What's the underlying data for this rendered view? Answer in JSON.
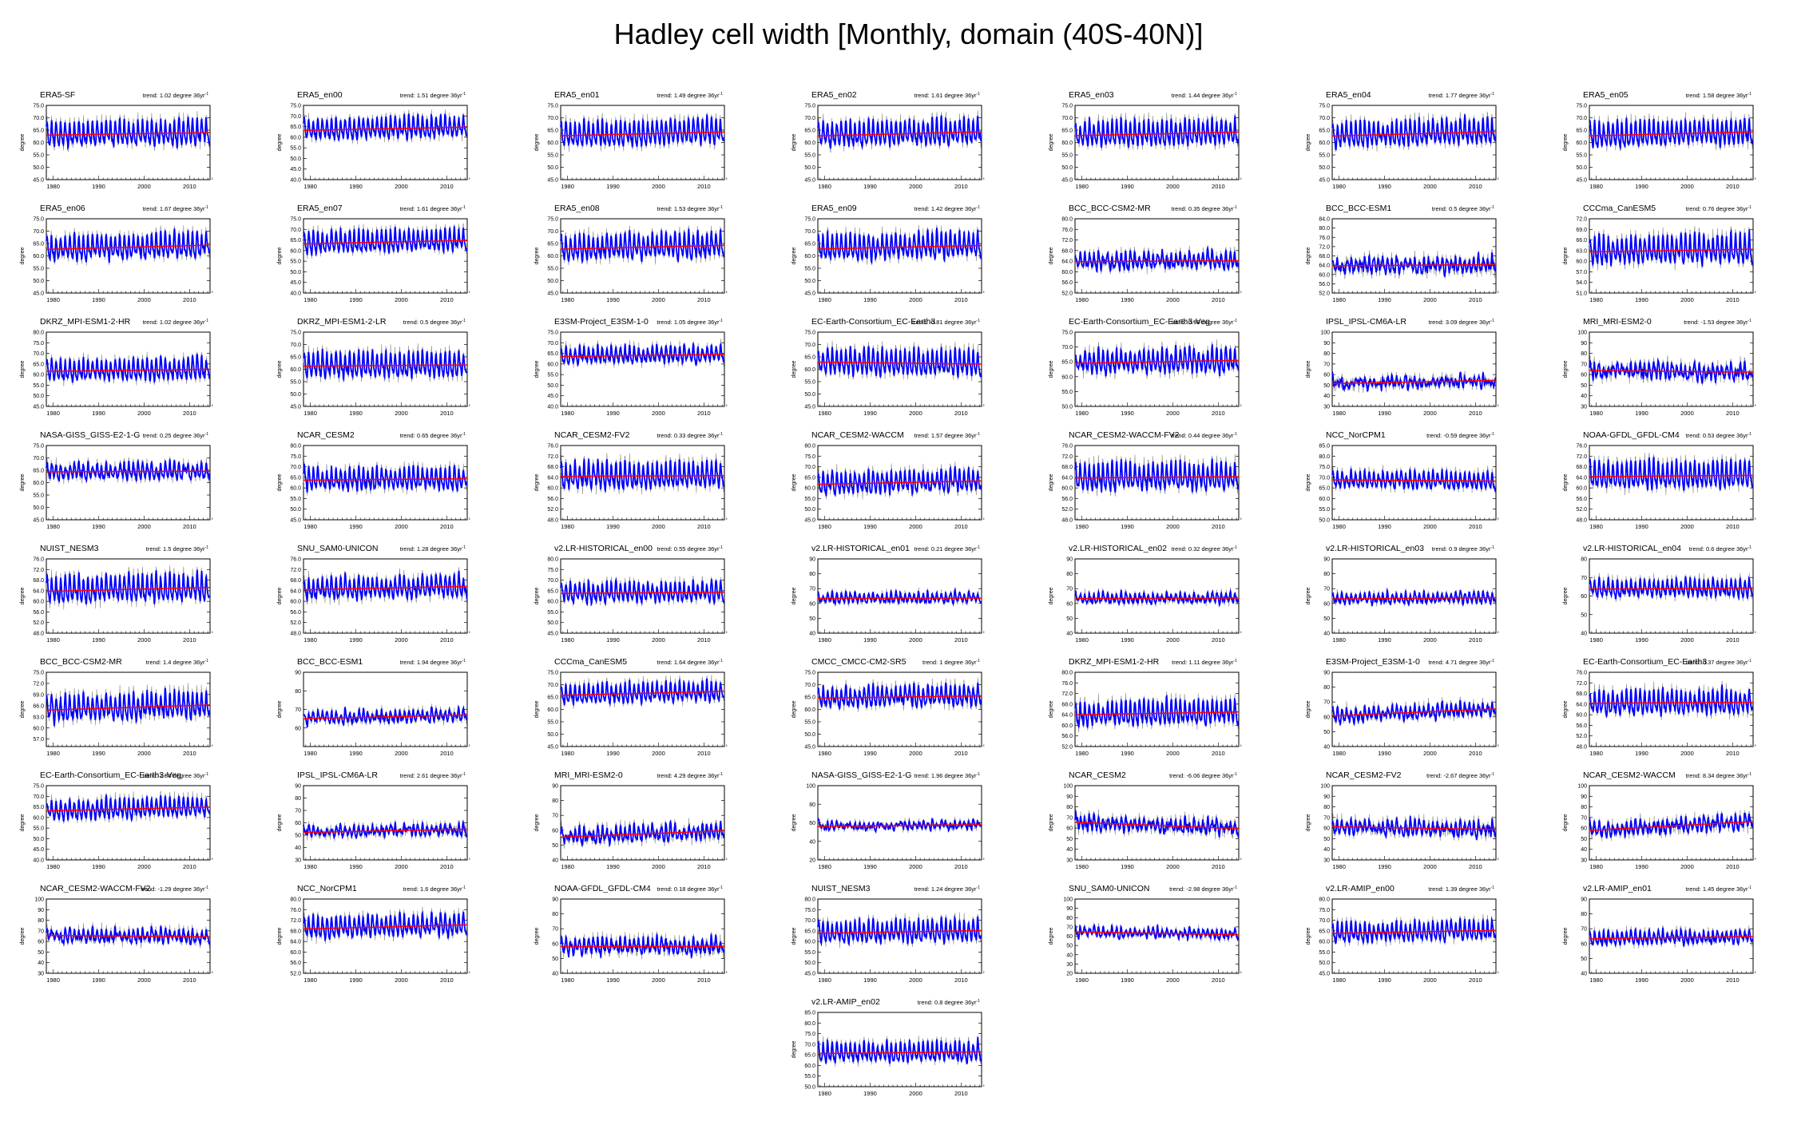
{
  "title": "Hadley cell width [Monthly, domain (40S-40N)]",
  "style": {
    "series_color": "#0000ff",
    "trend_color": "#ff0000",
    "raw_color": "#888888"
  },
  "common": {
    "ylabel": "degree",
    "x_ticks": [
      1980,
      1990,
      2000,
      2010
    ],
    "xlim": [
      1979,
      2015
    ],
    "trend_unit": "degree 36yr",
    "trend_exponent": "-1"
  },
  "chart_data": [
    {
      "name": "ERA5-SF",
      "trend": "1.02",
      "ylim": [
        45,
        75
      ],
      "yticks": [
        "75.0",
        "70.0",
        "65.0",
        "60.0",
        "55.0",
        "50.0",
        "45.0"
      ],
      "mean": 63.5,
      "amp": 4.5,
      "noise": 2.5
    },
    {
      "name": "ERA5_en00",
      "trend": "1.51",
      "ylim": [
        40,
        75
      ],
      "yticks": [
        "75.0",
        "70.0",
        "65.0",
        "60.0",
        "55.0",
        "50.0",
        "45.0",
        "40.0"
      ],
      "mean": 64,
      "amp": 4.5,
      "noise": 2.5
    },
    {
      "name": "ERA5_en01",
      "trend": "1.49",
      "ylim": [
        45,
        75
      ],
      "yticks": [
        "75.0",
        "70.0",
        "65.0",
        "60.0",
        "55.0",
        "50.0",
        "45.0"
      ],
      "mean": 63.5,
      "amp": 4.5,
      "noise": 2.5
    },
    {
      "name": "ERA5_en02",
      "trend": "1.61",
      "ylim": [
        45,
        75
      ],
      "yticks": [
        "75.0",
        "70.0",
        "65.0",
        "60.0",
        "55.0",
        "50.0",
        "45.0"
      ],
      "mean": 63.5,
      "amp": 4.5,
      "noise": 2.5
    },
    {
      "name": "ERA5_en03",
      "trend": "1.44",
      "ylim": [
        45,
        75
      ],
      "yticks": [
        "75.0",
        "70.0",
        "65.0",
        "60.0",
        "55.0",
        "50.0",
        "45.0"
      ],
      "mean": 63.5,
      "amp": 4.5,
      "noise": 2.5
    },
    {
      "name": "ERA5_en04",
      "trend": "1.77",
      "ylim": [
        45,
        75
      ],
      "yticks": [
        "75.0",
        "70.0",
        "65.0",
        "60.0",
        "55.0",
        "50.0",
        "45.0"
      ],
      "mean": 63.5,
      "amp": 4.5,
      "noise": 2.5
    },
    {
      "name": "ERA5_en05",
      "trend": "1.58",
      "ylim": [
        45,
        75
      ],
      "yticks": [
        "75.0",
        "70.0",
        "65.0",
        "60.0",
        "55.0",
        "50.0",
        "45.0"
      ],
      "mean": 63.5,
      "amp": 4.5,
      "noise": 2.5
    },
    {
      "name": "ERA5_en06",
      "trend": "1.67",
      "ylim": [
        45,
        75
      ],
      "yticks": [
        "75.0",
        "70.0",
        "65.0",
        "60.0",
        "55.0",
        "50.0",
        "45.0"
      ],
      "mean": 63.5,
      "amp": 4.5,
      "noise": 2.5
    },
    {
      "name": "ERA5_en07",
      "trend": "1.61",
      "ylim": [
        40,
        75
      ],
      "yticks": [
        "75.0",
        "70.0",
        "65.0",
        "60.0",
        "55.0",
        "50.0",
        "45.0",
        "40.0"
      ],
      "mean": 64,
      "amp": 4.5,
      "noise": 2.5
    },
    {
      "name": "ERA5_en08",
      "trend": "1.53",
      "ylim": [
        45,
        75
      ],
      "yticks": [
        "75.0",
        "70.0",
        "65.0",
        "60.0",
        "55.0",
        "50.0",
        "45.0"
      ],
      "mean": 63.5,
      "amp": 4.5,
      "noise": 2.5
    },
    {
      "name": "ERA5_en09",
      "trend": "1.42",
      "ylim": [
        45,
        75
      ],
      "yticks": [
        "75.0",
        "70.0",
        "65.0",
        "60.0",
        "55.0",
        "50.0",
        "45.0"
      ],
      "mean": 63.5,
      "amp": 4.5,
      "noise": 2.5
    },
    {
      "name": "BCC_BCC-CSM2-MR",
      "trend": "0.35",
      "ylim": [
        52,
        80
      ],
      "yticks": [
        "80.0",
        "76.0",
        "72.0",
        "68.0",
        "64.0",
        "60.0",
        "56.0",
        "52.0"
      ],
      "mean": 64,
      "amp": 2.5,
      "noise": 2.5
    },
    {
      "name": "BCC_BCC-ESM1",
      "trend": "0.5",
      "ylim": [
        52,
        84
      ],
      "yticks": [
        "84.0",
        "80.0",
        "76.0",
        "72.0",
        "68.0",
        "64.0",
        "60.0",
        "56.0",
        "52.0"
      ],
      "mean": 64,
      "amp": 2.5,
      "noise": 3.5
    },
    {
      "name": "CCCma_CanESM5",
      "trend": "0.76",
      "ylim": [
        51,
        72
      ],
      "yticks": [
        "72.0",
        "69.0",
        "66.0",
        "63.0",
        "60.0",
        "57.0",
        "54.0",
        "51.0"
      ],
      "mean": 63,
      "amp": 3.5,
      "noise": 2
    },
    {
      "name": "DKRZ_MPI-ESM1-2-HR",
      "trend": "1.02",
      "ylim": [
        45,
        80
      ],
      "yticks": [
        "80.0",
        "75.0",
        "70.0",
        "65.0",
        "60.0",
        "55.0",
        "50.0",
        "45.0"
      ],
      "mean": 62,
      "amp": 4.5,
      "noise": 2.5
    },
    {
      "name": "DKRZ_MPI-ESM1-2-LR",
      "trend": "0.5",
      "ylim": [
        45,
        75
      ],
      "yticks": [
        "75.0",
        "70.0",
        "65.0",
        "60.0",
        "55.0",
        "50.0",
        "45.0"
      ],
      "mean": 61.5,
      "amp": 4.5,
      "noise": 2.5
    },
    {
      "name": "E3SM-Project_E3SM-1-0",
      "trend": "1.05",
      "ylim": [
        40,
        75
      ],
      "yticks": [
        "75.0",
        "70.0",
        "65.0",
        "60.0",
        "55.0",
        "50.0",
        "45.0",
        "40.0"
      ],
      "mean": 64,
      "amp": 3.5,
      "noise": 2.5
    },
    {
      "name": "EC-Earth-Consortium_EC-Earth3",
      "trend": "-0.81",
      "ylim": [
        45,
        75
      ],
      "yticks": [
        "75.0",
        "70.0",
        "65.0",
        "60.0",
        "55.0",
        "50.0",
        "45.0"
      ],
      "mean": 62.5,
      "amp": 4.5,
      "noise": 2.5
    },
    {
      "name": "EC-Earth-Consortium_EC-Earth3-Veg",
      "trend": "0.98",
      "ylim": [
        50,
        75
      ],
      "yticks": [
        "75.0",
        "70.0",
        "65.0",
        "60.0",
        "55.0",
        "50.0"
      ],
      "mean": 65,
      "amp": 3.5,
      "noise": 2.5
    },
    {
      "name": "IPSL_IPSL-CM6A-LR",
      "trend": "3.09",
      "ylim": [
        30,
        100
      ],
      "yticks": [
        "100",
        "90",
        "80",
        "70",
        "60",
        "50",
        "40",
        "30"
      ],
      "mean": 53,
      "amp": 3,
      "noise": 7
    },
    {
      "name": "MRI_MRI-ESM2-0",
      "trend": "-1.53",
      "ylim": [
        30,
        100
      ],
      "yticks": [
        "100",
        "90",
        "80",
        "70",
        "60",
        "50",
        "40",
        "30"
      ],
      "mean": 63,
      "amp": 5,
      "noise": 8
    },
    {
      "name": "NASA-GISS_GISS-E2-1-G",
      "trend": "0.25",
      "ylim": [
        45,
        75
      ],
      "yticks": [
        "75.0",
        "70.0",
        "65.0",
        "60.0",
        "55.0",
        "50.0",
        "45.0"
      ],
      "mean": 64.5,
      "amp": 2.5,
      "noise": 2.5
    },
    {
      "name": "NCAR_CESM2",
      "trend": "0.65",
      "ylim": [
        45,
        80
      ],
      "yticks": [
        "80.0",
        "75.0",
        "70.0",
        "65.0",
        "60.0",
        "55.0",
        "50.0",
        "45.0"
      ],
      "mean": 64,
      "amp": 4.5,
      "noise": 3
    },
    {
      "name": "NCAR_CESM2-FV2",
      "trend": "0.33",
      "ylim": [
        48,
        76
      ],
      "yticks": [
        "76.0",
        "72.0",
        "68.0",
        "64.0",
        "60.0",
        "56.0",
        "52.0",
        "48.0"
      ],
      "mean": 64.5,
      "amp": 4.5,
      "noise": 2.5
    },
    {
      "name": "NCAR_CESM2-WACCM",
      "trend": "1.57",
      "ylim": [
        45,
        80
      ],
      "yticks": [
        "80.0",
        "75.0",
        "70.0",
        "65.0",
        "60.0",
        "55.0",
        "50.0",
        "45.0"
      ],
      "mean": 62.5,
      "amp": 4.5,
      "noise": 3
    },
    {
      "name": "NCAR_CESM2-WACCM-FV2",
      "trend": "0.44",
      "ylim": [
        48,
        76
      ],
      "yticks": [
        "76.0",
        "72.0",
        "68.0",
        "64.0",
        "60.0",
        "56.0",
        "52.0",
        "48.0"
      ],
      "mean": 64,
      "amp": 4.5,
      "noise": 2.5
    },
    {
      "name": "NCC_NorCPM1",
      "trend": "-0.59",
      "ylim": [
        50,
        85
      ],
      "yticks": [
        "85.0",
        "80.0",
        "75.0",
        "70.0",
        "65.0",
        "60.0",
        "55.0",
        "50.0"
      ],
      "mean": 68.5,
      "amp": 3.5,
      "noise": 2.5
    },
    {
      "name": "NOAA-GFDL_GFDL-CM4",
      "trend": "0.53",
      "ylim": [
        48,
        76
      ],
      "yticks": [
        "76.0",
        "72.0",
        "68.0",
        "64.0",
        "60.0",
        "56.0",
        "52.0",
        "48.0"
      ],
      "mean": 64.5,
      "amp": 4.5,
      "noise": 2.5
    },
    {
      "name": "NUIST_NESM3",
      "trend": "1.5",
      "ylim": [
        48,
        76
      ],
      "yticks": [
        "76.0",
        "72.0",
        "68.0",
        "64.0",
        "60.0",
        "56.0",
        "52.0",
        "48.0"
      ],
      "mean": 64.5,
      "amp": 4.5,
      "noise": 2.5
    },
    {
      "name": "SNU_SAM0-UNICON",
      "trend": "1.28",
      "ylim": [
        48,
        76
      ],
      "yticks": [
        "76.0",
        "72.0",
        "68.0",
        "64.0",
        "60.0",
        "56.0",
        "52.0",
        "48.0"
      ],
      "mean": 65,
      "amp": 3.5,
      "noise": 2.5
    },
    {
      "name": "v2.LR-HISTORICAL_en00",
      "trend": "0.55",
      "ylim": [
        45,
        80
      ],
      "yticks": [
        "80.0",
        "75.0",
        "70.0",
        "65.0",
        "60.0",
        "55.0",
        "50.0",
        "45.0"
      ],
      "mean": 64,
      "amp": 4,
      "noise": 2.5
    },
    {
      "name": "v2.LR-HISTORICAL_en01",
      "trend": "0.21",
      "ylim": [
        40,
        90
      ],
      "yticks": [
        "90",
        "80",
        "70",
        "60",
        "50",
        "40"
      ],
      "mean": 63.5,
      "amp": 3,
      "noise": 3
    },
    {
      "name": "v2.LR-HISTORICAL_en02",
      "trend": "0.32",
      "ylim": [
        40,
        90
      ],
      "yticks": [
        "90",
        "80",
        "70",
        "60",
        "50",
        "40"
      ],
      "mean": 63.5,
      "amp": 3,
      "noise": 3
    },
    {
      "name": "v2.LR-HISTORICAL_en03",
      "trend": "0.9",
      "ylim": [
        40,
        90
      ],
      "yticks": [
        "90",
        "80",
        "70",
        "60",
        "50",
        "40"
      ],
      "mean": 63.5,
      "amp": 3,
      "noise": 3
    },
    {
      "name": "v2.LR-HISTORICAL_en04",
      "trend": "0.6",
      "ylim": [
        40,
        80
      ],
      "yticks": [
        "80",
        "70",
        "60",
        "50",
        "40"
      ],
      "mean": 64,
      "amp": 4,
      "noise": 3
    },
    {
      "name": "BCC_BCC-CSM2-MR",
      "trend": "1.4",
      "ylim": [
        55,
        75
      ],
      "yticks": [
        "75.0",
        "72.0",
        "69.0",
        "66.0",
        "63.0",
        "60.0",
        "57.0"
      ],
      "mean": 65.5,
      "amp": 3,
      "noise": 2
    },
    {
      "name": "BCC_BCC-ESM1",
      "trend": "1.94",
      "ylim": [
        50,
        90
      ],
      "yticks": [
        "90",
        "80",
        "70",
        "60"
      ],
      "mean": 66,
      "amp": 2.5,
      "noise": 3
    },
    {
      "name": "CCCma_CanESM5",
      "trend": "1.64",
      "ylim": [
        45,
        75
      ],
      "yticks": [
        "75.0",
        "70.0",
        "65.0",
        "60.0",
        "55.0",
        "50.0",
        "45.0"
      ],
      "mean": 66.5,
      "amp": 3.5,
      "noise": 2
    },
    {
      "name": "CMCC_CMCC-CM2-SR5",
      "trend": "1",
      "ylim": [
        45,
        75
      ],
      "yticks": [
        "75.0",
        "70.0",
        "65.0",
        "60.0",
        "55.0",
        "50.0",
        "45.0"
      ],
      "mean": 65,
      "amp": 3.5,
      "noise": 2.5
    },
    {
      "name": "DKRZ_MPI-ESM1-2-HR",
      "trend": "1.11",
      "ylim": [
        52,
        80
      ],
      "yticks": [
        "80.0",
        "76.0",
        "72.0",
        "68.0",
        "64.0",
        "60.0",
        "56.0",
        "52.0"
      ],
      "mean": 64.5,
      "amp": 4,
      "noise": 2.5
    },
    {
      "name": "E3SM-Project_E3SM-1-0",
      "trend": "4.71",
      "ylim": [
        40,
        90
      ],
      "yticks": [
        "90",
        "80",
        "70",
        "60",
        "50",
        "40"
      ],
      "mean": 63,
      "amp": 4,
      "noise": 4
    },
    {
      "name": "EC-Earth-Consortium_EC-Earth3",
      "trend": "0.37",
      "ylim": [
        48,
        76
      ],
      "yticks": [
        "76.0",
        "72.0",
        "68.0",
        "64.0",
        "60.0",
        "56.0",
        "52.0",
        "48.0"
      ],
      "mean": 64.5,
      "amp": 4,
      "noise": 2.5
    },
    {
      "name": "EC-Earth-Consortium_EC-Earth3-Veg",
      "trend": "1.84",
      "ylim": [
        40,
        75
      ],
      "yticks": [
        "75.0",
        "70.0",
        "65.0",
        "60.0",
        "55.0",
        "50.0",
        "45.0",
        "40.0"
      ],
      "mean": 64,
      "amp": 4,
      "noise": 2.5
    },
    {
      "name": "IPSL_IPSL-CM6A-LR",
      "trend": "2.61",
      "ylim": [
        30,
        90
      ],
      "yticks": [
        "90",
        "80",
        "70",
        "60",
        "50",
        "40",
        "30"
      ],
      "mean": 53.5,
      "amp": 3,
      "noise": 5
    },
    {
      "name": "MRI_MRI-ESM2-0",
      "trend": "4.29",
      "ylim": [
        40,
        90
      ],
      "yticks": [
        "90",
        "80",
        "70",
        "60",
        "50",
        "40"
      ],
      "mean": 57.5,
      "amp": 4,
      "noise": 5
    },
    {
      "name": "NASA-GISS_GISS-E2-1-G",
      "trend": "1.96",
      "ylim": [
        20,
        100
      ],
      "yticks": [
        "100",
        "80",
        "60",
        "40",
        "20"
      ],
      "mean": 57,
      "amp": 3,
      "noise": 5
    },
    {
      "name": "NCAR_CESM2",
      "trend": "-6.06",
      "ylim": [
        30,
        100
      ],
      "yticks": [
        "100",
        "90",
        "80",
        "70",
        "60",
        "50",
        "40",
        "30"
      ],
      "mean": 62.5,
      "amp": 5,
      "noise": 7
    },
    {
      "name": "NCAR_CESM2-FV2",
      "trend": "-2.67",
      "ylim": [
        30,
        100
      ],
      "yticks": [
        "100",
        "90",
        "80",
        "70",
        "60",
        "50",
        "40",
        "30"
      ],
      "mean": 60,
      "amp": 5,
      "noise": 7
    },
    {
      "name": "NCAR_CESM2-WACCM",
      "trend": "8.34",
      "ylim": [
        30,
        100
      ],
      "yticks": [
        "100",
        "90",
        "80",
        "70",
        "60",
        "50",
        "40",
        "30"
      ],
      "mean": 62,
      "amp": 5,
      "noise": 7
    },
    {
      "name": "NCAR_CESM2-WACCM-FV2",
      "trend": "-1.29",
      "ylim": [
        30,
        100
      ],
      "yticks": [
        "100",
        "90",
        "80",
        "70",
        "60",
        "50",
        "40",
        "30"
      ],
      "mean": 65,
      "amp": 5,
      "noise": 6
    },
    {
      "name": "NCC_NorCPM1",
      "trend": "1.6",
      "ylim": [
        52,
        80
      ],
      "yticks": [
        "80.0",
        "76.0",
        "72.0",
        "68.0",
        "64.0",
        "60.0",
        "56.0",
        "52.0"
      ],
      "mean": 69.5,
      "amp": 3.5,
      "noise": 2.5
    },
    {
      "name": "NOAA-GFDL_GFDL-CM4",
      "trend": "0.18",
      "ylim": [
        40,
        90
      ],
      "yticks": [
        "90",
        "80",
        "70",
        "60",
        "50",
        "40"
      ],
      "mean": 58,
      "amp": 4,
      "noise": 5
    },
    {
      "name": "NUIST_NESM3",
      "trend": "1.24",
      "ylim": [
        45,
        80
      ],
      "yticks": [
        "80.0",
        "75.0",
        "70.0",
        "65.0",
        "60.0",
        "55.0",
        "50.0",
        "45.0"
      ],
      "mean": 64.5,
      "amp": 4.5,
      "noise": 2.5
    },
    {
      "name": "SNU_SAM0-UNICON",
      "trend": "-2.98",
      "ylim": [
        20,
        100
      ],
      "yticks": [
        "100",
        "90",
        "80",
        "70",
        "60",
        "50",
        "40",
        "30",
        "20"
      ],
      "mean": 63,
      "amp": 4,
      "noise": 5
    },
    {
      "name": "v2.LR-AMIP_en00",
      "trend": "1.39",
      "ylim": [
        45,
        80
      ],
      "yticks": [
        "80.0",
        "75.0",
        "70.0",
        "65.0",
        "60.0",
        "55.0",
        "50.0",
        "45.0"
      ],
      "mean": 64.5,
      "amp": 4,
      "noise": 2.5
    },
    {
      "name": "v2.LR-AMIP_en01",
      "trend": "1.45",
      "ylim": [
        40,
        90
      ],
      "yticks": [
        "90",
        "80",
        "70",
        "60",
        "50",
        "40"
      ],
      "mean": 64,
      "amp": 4,
      "noise": 3
    },
    {
      "name": "v2.LR-AMIP_en02",
      "trend": "0.8",
      "ylim": [
        50,
        85
      ],
      "yticks": [
        "85.0",
        "80.0",
        "75.0",
        "70.0",
        "65.0",
        "60.0",
        "55.0",
        "50.0"
      ],
      "mean": 66,
      "amp": 4,
      "noise": 2.5
    }
  ]
}
